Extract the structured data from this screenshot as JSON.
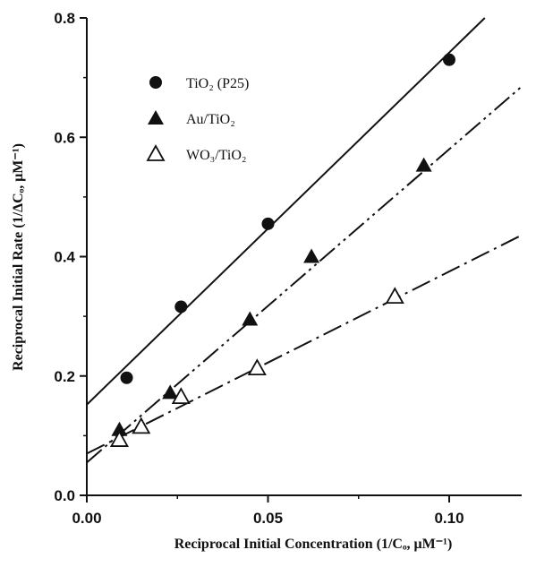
{
  "chart_data": {
    "type": "scatter",
    "xlabel": "Reciprocal Initial Concentration (1/Cₒ, μM⁻¹)",
    "ylabel": "Reciprocal Initial Rate (1/ΔCₒ, μM⁻¹)",
    "xlim": [
      0,
      0.12
    ],
    "ylim": [
      0,
      0.8
    ],
    "xticks": [
      "0.00",
      "0.05",
      "0.10"
    ],
    "yticks": [
      "0.0",
      "0.2",
      "0.4",
      "0.6",
      "0.8"
    ],
    "grid": false,
    "legend_position": "top-left",
    "series": [
      {
        "name": "TiO₂ (P25)",
        "marker": "filled-circle",
        "line_style": "solid",
        "x": [
          0.011,
          0.026,
          0.05,
          0.1
        ],
        "y": [
          0.197,
          0.316,
          0.455,
          0.73
        ],
        "fit": {
          "intercept": 0.152,
          "slope": 5.9
        }
      },
      {
        "name": "Au/TiO₂",
        "marker": "filled-triangle",
        "line_style": "dash-dot-dot",
        "x": [
          0.009,
          0.023,
          0.045,
          0.062,
          0.093
        ],
        "y": [
          0.11,
          0.172,
          0.295,
          0.4,
          0.553
        ],
        "fit": {
          "intercept": 0.055,
          "slope": 5.25
        }
      },
      {
        "name": "WO₃/TiO₂",
        "marker": "open-triangle",
        "line_style": "dash-dot",
        "x": [
          0.009,
          0.015,
          0.026,
          0.047,
          0.085
        ],
        "y": [
          0.093,
          0.115,
          0.165,
          0.213,
          0.333
        ],
        "fit": {
          "intercept": 0.07,
          "slope": 3.05
        }
      }
    ]
  }
}
